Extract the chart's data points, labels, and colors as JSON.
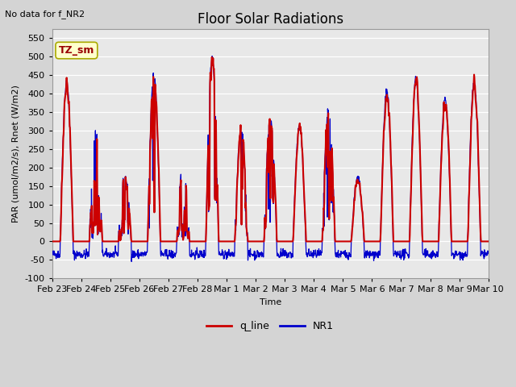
{
  "title": "Floor Solar Radiations",
  "no_data_text": "No data for f_NR2",
  "xlabel": "Time",
  "ylabel": "PAR (umol/m2/s), Rnet (W/m2)",
  "ylim": [
    -100,
    575
  ],
  "fig_facecolor": "#d4d4d4",
  "ax_facecolor": "#e8e8e8",
  "line_color_red": "#cc0000",
  "line_color_blue": "#0000cc",
  "legend_labels": [
    "q_line",
    "NR1"
  ],
  "tz_sm_label": "TZ_sm",
  "tz_sm_bg": "#ffffcc",
  "tz_sm_border": "#aaaa00",
  "tz_sm_text_color": "#990000",
  "x_tick_labels": [
    "Feb 23",
    "Feb 24",
    "Feb 25",
    "Feb 26",
    "Feb 27",
    "Feb 28",
    "Mar 1",
    "Mar 2",
    "Mar 3",
    "Mar 4",
    "Mar 5",
    "Mar 6",
    "Mar 7",
    "Mar 8",
    "Mar 9",
    "Mar 10"
  ],
  "n_days": 15,
  "pts_per_day": 96,
  "day_peaks_nr1": [
    430,
    300,
    175,
    455,
    200,
    500,
    305,
    330,
    310,
    355,
    170,
    405,
    440,
    385,
    430
  ],
  "night_val": -35,
  "title_fontsize": 12,
  "axis_label_fontsize": 8,
  "tick_label_fontsize": 8,
  "grid_color": "#ffffff",
  "spine_color": "#999999"
}
